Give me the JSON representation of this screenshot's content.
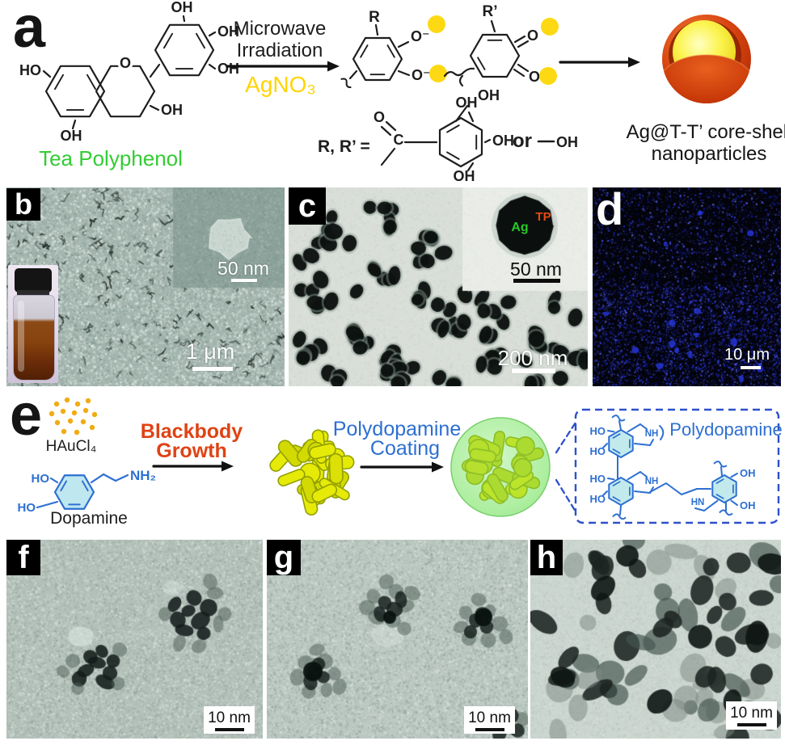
{
  "colors": {
    "tea_green": "#33cc33",
    "silver_nitrate_yellow": "#ffd400",
    "ag_ion_dot_yellow": "#fcd913",
    "blackbody_red": "#e04214",
    "dopamine_blue": "#2d6fd2",
    "ag_core_label_green": "#28c828",
    "tp_shell_label_red": "#e8490f",
    "shell_orange": "#c83808",
    "core_yellow": "#f0dc20",
    "pdop_ring_fill": "#c2eaec",
    "gold_capsule_yellow": "#dde005",
    "coated_capsule_green": "#c3dc12",
    "fluorescence_blue": "#2434de"
  },
  "panel_a": {
    "label": "a",
    "molecule_name": "Tea Polyphenol",
    "condition_line1": "Microwave",
    "condition_line2": "Irradiation",
    "reagent": "AgNO₃",
    "r_label": "R",
    "r_prime_label": "R’",
    "o_minus": "O⁻",
    "o_label": "O",
    "c_label": "C",
    "ho": "HO",
    "oh": "OH",
    "r_definition": "R, R’ =",
    "or_text": "or",
    "product_line1": "Ag@T-T’ core-shell",
    "product_line2": "nanoparticles"
  },
  "panel_b": {
    "label": "b",
    "inset_scale": "50 nm",
    "scale": "1 μm"
  },
  "panel_c": {
    "label": "c",
    "core_label": "Ag",
    "shell_label": "TP",
    "inset_scale": "50 nm",
    "scale": "200 nm"
  },
  "panel_d": {
    "label": "d",
    "scale": "10 μm"
  },
  "panel_e": {
    "label": "e",
    "reagent1": "HAuCl₄",
    "reagent2_name": "Dopamine",
    "amine": "NH₂",
    "ho": "HO",
    "oh": "OH",
    "nh": "NH",
    "hn": "HN",
    "step1_line1": "Blackbody",
    "step1_line2": "Growth",
    "step2_line1": "Polydopamine",
    "step2_line2": "Coating",
    "coating_name": "Polydopamine"
  },
  "panel_f": {
    "label": "f",
    "scale": "10 nm"
  },
  "panel_g": {
    "label": "g",
    "scale": "10 nm"
  },
  "panel_h": {
    "label": "h",
    "scale": "10 nm"
  }
}
